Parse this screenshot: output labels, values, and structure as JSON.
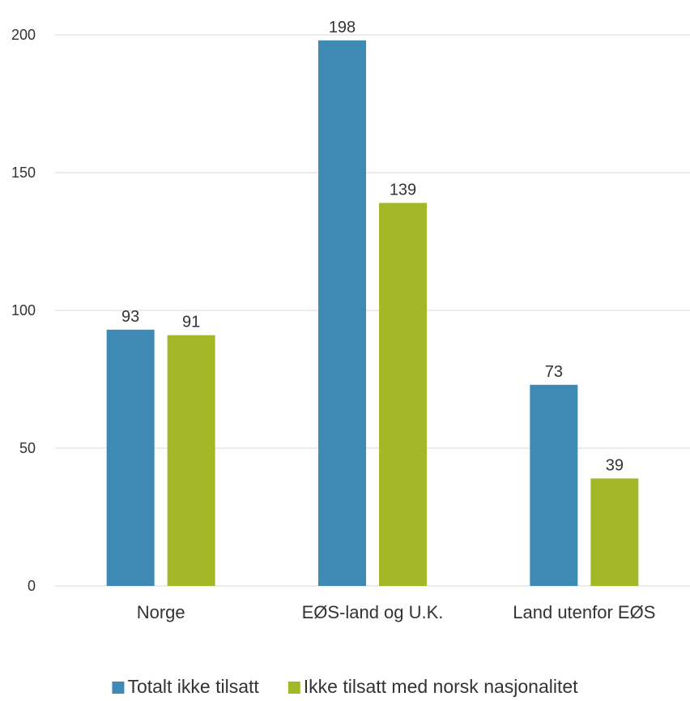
{
  "chart_data": {
    "type": "bar",
    "categories": [
      "Norge",
      "EØS-land og U.K.",
      "Land utenfor EØS"
    ],
    "series": [
      {
        "name": "Totalt ikke tilsatt",
        "color": "#3f8ab5",
        "values": [
          93,
          198,
          73
        ]
      },
      {
        "name": "Ikke tilsatt med norsk nasjonalitet",
        "color": "#a4b827",
        "values": [
          91,
          139,
          39
        ]
      }
    ],
    "title": "",
    "xlabel": "",
    "ylabel": "",
    "ylim": [
      0,
      200
    ],
    "yticks": [
      0,
      50,
      100,
      150,
      200
    ],
    "grid": true,
    "legend_position": "bottom"
  },
  "colors": {
    "gridline": "#d9d9d9",
    "text": "#333333"
  }
}
